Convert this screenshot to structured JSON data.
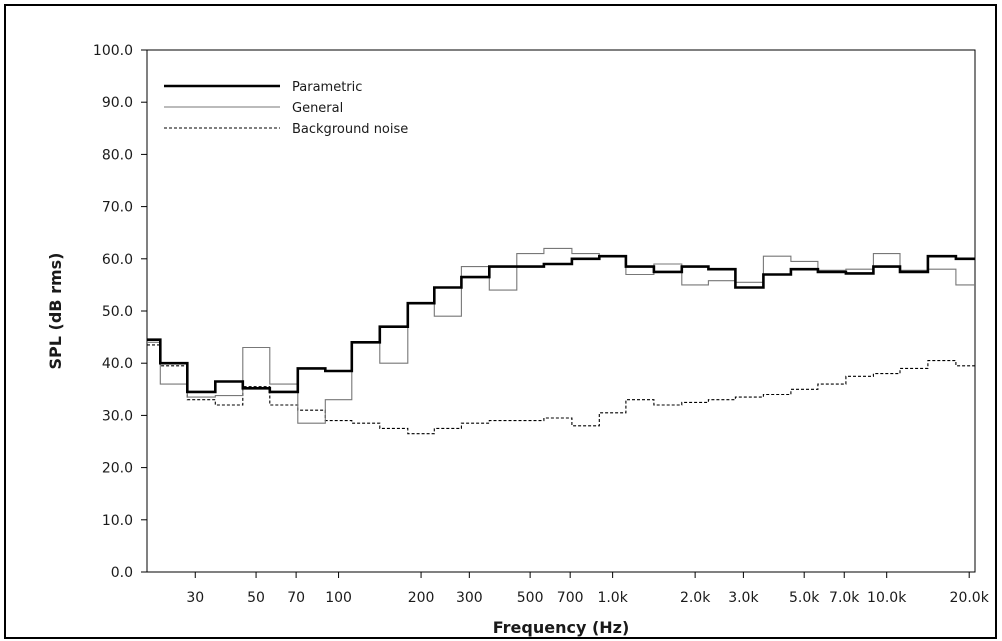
{
  "chart_data": {
    "type": "line",
    "step": true,
    "xlabel": "Frequency (Hz)",
    "ylabel": "SPL (dB rms)",
    "x_scale": "log",
    "xlim": [
      20,
      21000
    ],
    "ylim": [
      0,
      100
    ],
    "y_ticks": [
      0,
      10,
      20,
      30,
      40,
      50,
      60,
      70,
      80,
      90,
      100
    ],
    "y_tick_labels": [
      "0.0",
      "10.0",
      "20.0",
      "30.0",
      "40.0",
      "50.0",
      "60.0",
      "70.0",
      "80.0",
      "90.0",
      "100.0"
    ],
    "x_ticks": [
      30,
      50,
      70,
      100,
      200,
      300,
      500,
      700,
      1000,
      2000,
      3000,
      5000,
      7000,
      10000,
      20000
    ],
    "x_tick_labels": [
      "30",
      "50",
      "70",
      "100",
      "200",
      "300",
      "500",
      "700",
      "1.0k",
      "2.0k",
      "3.0k",
      "5.0k",
      "7.0k",
      "10.0k",
      "20.0k"
    ],
    "grid": false,
    "legend_position": "top-left",
    "bands": [
      20,
      25,
      31.5,
      40,
      50,
      63,
      80,
      100,
      125,
      160,
      200,
      250,
      315,
      400,
      500,
      630,
      800,
      1000,
      1250,
      1600,
      2000,
      2500,
      3150,
      4000,
      5000,
      6300,
      8000,
      10000,
      12500,
      16000,
      20000
    ],
    "series": [
      {
        "name": "Parametric",
        "style": "thick",
        "color": "#000000",
        "values": [
          44.5,
          40.0,
          34.5,
          36.5,
          35.2,
          34.5,
          39.0,
          38.5,
          44.0,
          47.0,
          51.5,
          54.5,
          56.5,
          58.5,
          58.5,
          59.0,
          60.0,
          60.5,
          58.5,
          57.5,
          58.5,
          58.0,
          54.5,
          57.0,
          58.0,
          57.5,
          57.2,
          58.5,
          57.5,
          60.5,
          60.0
        ]
      },
      {
        "name": "General",
        "style": "thin",
        "color": "#777777",
        "values": [
          44.0,
          36.0,
          33.5,
          33.8,
          43.0,
          36.0,
          28.5,
          33.0,
          44.0,
          40.0,
          51.5,
          49.0,
          58.5,
          54.0,
          61.0,
          62.0,
          61.0,
          60.5,
          57.0,
          59.0,
          55.0,
          55.8,
          55.5,
          60.5,
          59.5,
          57.8,
          58.0,
          61.0,
          57.8,
          58.0,
          55.0
        ]
      },
      {
        "name": "Background noise",
        "style": "dashed",
        "color": "#000000",
        "values": [
          43.5,
          39.5,
          33.0,
          32.0,
          35.5,
          32.0,
          31.0,
          29.0,
          28.5,
          27.5,
          26.5,
          27.5,
          28.5,
          29.0,
          29.0,
          29.5,
          28.0,
          30.5,
          33.0,
          32.0,
          32.5,
          33.0,
          33.5,
          34.0,
          35.0,
          36.0,
          37.5,
          38.0,
          39.0,
          40.5,
          39.5
        ]
      }
    ]
  }
}
